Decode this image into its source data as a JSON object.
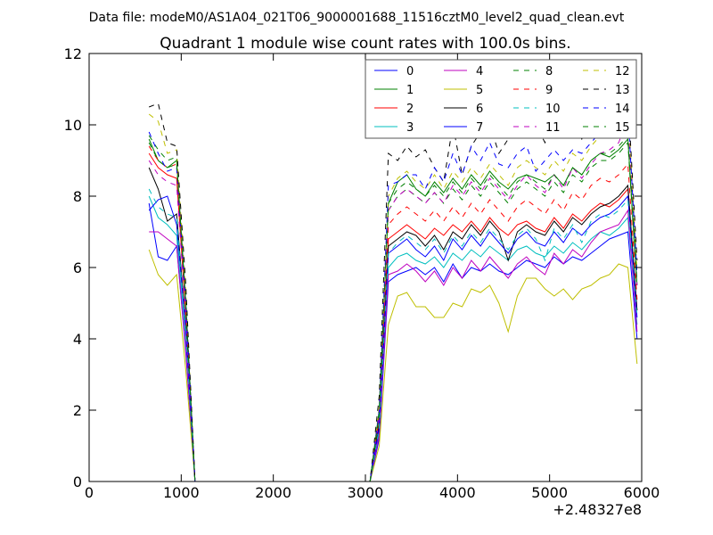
{
  "chart_data": {
    "type": "line",
    "suptitle": "Data file: modeM0/AS1A04_021T06_9000001688_11516cztM0_level2_quad_clean.evt",
    "title": "Quadrant 1 module wise count rates with 100.0s bins.",
    "xlabel": "",
    "ylabel": "",
    "x_offset_label": "+2.48327e8",
    "xlim": [
      0,
      6000
    ],
    "ylim": [
      0,
      12
    ],
    "xticks": [
      0,
      1000,
      2000,
      3000,
      4000,
      5000,
      6000
    ],
    "yticks": [
      0,
      2,
      4,
      6,
      8,
      10,
      12
    ],
    "grid": false,
    "legend_position": "top-right",
    "legend_columns": 4,
    "x": [
      650,
      750,
      850,
      950,
      1050,
      1150,
      1250,
      1350,
      1450,
      1550,
      1650,
      1750,
      1850,
      1950,
      2050,
      2150,
      2250,
      2350,
      2450,
      2550,
      2650,
      2750,
      2850,
      2950,
      3050,
      3150,
      3250,
      3350,
      3450,
      3550,
      3650,
      3750,
      3850,
      3950,
      4050,
      4150,
      4250,
      4350,
      4450,
      4550,
      4650,
      4750,
      4850,
      4950,
      5050,
      5150,
      5250,
      5350,
      5450,
      5550,
      5650,
      5750,
      5850,
      5950
    ],
    "series": [
      {
        "name": "0",
        "color": "#0000ff",
        "dash": false,
        "values": [
          7.8,
          6.3,
          6.2,
          6.6,
          3.6,
          0,
          0,
          0,
          0,
          0,
          0,
          0,
          0,
          0,
          0,
          0,
          0,
          0,
          0,
          0,
          0,
          0,
          0,
          0,
          0,
          1.2,
          5.6,
          5.8,
          5.9,
          6.0,
          5.8,
          6.0,
          5.6,
          6.1,
          5.7,
          6.0,
          5.9,
          6.1,
          5.9,
          5.8,
          6.0,
          6.2,
          6.1,
          6.0,
          6.3,
          6.1,
          6.3,
          6.2,
          6.4,
          6.6,
          6.8,
          6.9,
          7.0,
          4.0
        ]
      },
      {
        "name": "1",
        "color": "#008000",
        "dash": false,
        "values": [
          9.6,
          9.0,
          8.8,
          9.0,
          5.0,
          0,
          0,
          0,
          0,
          0,
          0,
          0,
          0,
          0,
          0,
          0,
          0,
          0,
          0,
          0,
          0,
          0,
          0,
          0,
          0,
          2.0,
          7.8,
          8.4,
          8.6,
          8.2,
          8.0,
          8.4,
          8.1,
          8.5,
          8.2,
          8.6,
          8.3,
          8.7,
          8.4,
          8.2,
          8.5,
          8.6,
          8.5,
          8.4,
          8.6,
          8.3,
          8.8,
          8.6,
          9.0,
          9.2,
          9.1,
          9.3,
          9.6,
          5.5
        ]
      },
      {
        "name": "2",
        "color": "#ff0000",
        "dash": false,
        "values": [
          9.2,
          8.8,
          8.6,
          8.5,
          4.7,
          0,
          0,
          0,
          0,
          0,
          0,
          0,
          0,
          0,
          0,
          0,
          0,
          0,
          0,
          0,
          0,
          0,
          0,
          0,
          0,
          1.8,
          6.8,
          7.0,
          7.2,
          7.0,
          6.8,
          7.1,
          6.9,
          7.2,
          7.0,
          7.3,
          7.0,
          7.4,
          7.1,
          6.9,
          7.2,
          7.3,
          7.1,
          7.0,
          7.4,
          7.1,
          7.5,
          7.3,
          7.6,
          7.8,
          7.7,
          7.9,
          8.2,
          4.8
        ]
      },
      {
        "name": "3",
        "color": "#00bfbf",
        "dash": false,
        "values": [
          8.0,
          7.4,
          7.2,
          6.9,
          3.8,
          0,
          0,
          0,
          0,
          0,
          0,
          0,
          0,
          0,
          0,
          0,
          0,
          0,
          0,
          0,
          0,
          0,
          0,
          0,
          0,
          1.4,
          6.0,
          6.3,
          6.4,
          6.2,
          6.1,
          6.3,
          6.0,
          6.4,
          6.2,
          6.5,
          6.3,
          6.6,
          6.4,
          6.2,
          6.5,
          6.6,
          6.4,
          6.3,
          6.6,
          6.4,
          6.7,
          6.5,
          6.8,
          7.0,
          6.9,
          7.1,
          7.4,
          4.4
        ]
      },
      {
        "name": "4",
        "color": "#bf00bf",
        "dash": false,
        "values": [
          7.0,
          7.0,
          6.8,
          6.6,
          3.7,
          0,
          0,
          0,
          0,
          0,
          0,
          0,
          0,
          0,
          0,
          0,
          0,
          0,
          0,
          0,
          0,
          0,
          0,
          0,
          0,
          1.3,
          5.8,
          5.9,
          6.1,
          5.9,
          5.6,
          5.9,
          5.5,
          6.0,
          5.7,
          6.2,
          5.9,
          6.3,
          6.0,
          5.7,
          6.1,
          6.3,
          6.0,
          5.8,
          6.4,
          6.1,
          6.5,
          6.3,
          6.7,
          7.0,
          7.1,
          7.2,
          7.6,
          4.2
        ]
      },
      {
        "name": "5",
        "color": "#bfbf00",
        "dash": false,
        "values": [
          6.5,
          5.8,
          5.5,
          5.8,
          3.1,
          0,
          0,
          0,
          0,
          0,
          0,
          0,
          0,
          0,
          0,
          0,
          0,
          0,
          0,
          0,
          0,
          0,
          0,
          0,
          0,
          1.0,
          4.4,
          5.2,
          5.3,
          4.9,
          4.9,
          4.6,
          4.6,
          5.0,
          4.9,
          5.4,
          5.3,
          5.5,
          5.0,
          4.2,
          5.2,
          5.7,
          5.7,
          5.4,
          5.2,
          5.4,
          5.1,
          5.4,
          5.5,
          5.7,
          5.8,
          6.1,
          6.0,
          3.3
        ]
      },
      {
        "name": "6",
        "color": "#000000",
        "dash": false,
        "values": [
          8.8,
          8.2,
          7.3,
          7.5,
          4.3,
          0,
          0,
          0,
          0,
          0,
          0,
          0,
          0,
          0,
          0,
          0,
          0,
          0,
          0,
          0,
          0,
          0,
          0,
          0,
          0,
          1.6,
          6.6,
          6.8,
          7.0,
          6.9,
          6.6,
          6.9,
          6.5,
          7.0,
          6.8,
          7.2,
          6.9,
          7.3,
          7.0,
          6.2,
          7.0,
          7.2,
          7.0,
          6.9,
          7.3,
          7.0,
          7.4,
          7.2,
          7.5,
          7.7,
          7.8,
          8.0,
          8.3,
          4.8
        ]
      },
      {
        "name": "7",
        "color": "#0000ff",
        "dash": false,
        "values": [
          7.6,
          7.9,
          8.0,
          7.2,
          4.2,
          0,
          0,
          0,
          0,
          0,
          0,
          0,
          0,
          0,
          0,
          0,
          0,
          0,
          0,
          0,
          0,
          0,
          0,
          0,
          0,
          1.5,
          6.4,
          6.6,
          6.8,
          6.5,
          6.3,
          6.6,
          6.2,
          6.8,
          6.5,
          6.9,
          6.6,
          7.0,
          6.7,
          6.4,
          6.8,
          7.0,
          6.7,
          6.6,
          7.0,
          6.7,
          7.1,
          6.9,
          7.2,
          7.4,
          7.5,
          7.7,
          8.0,
          4.6
        ]
      },
      {
        "name": "8",
        "color": "#008000",
        "dash": true,
        "values": [
          9.7,
          9.3,
          9.0,
          9.1,
          5.1,
          0,
          0,
          0,
          0,
          0,
          0,
          0,
          0,
          0,
          0,
          0,
          0,
          0,
          0,
          0,
          0,
          0,
          0,
          0,
          0,
          2.0,
          7.6,
          8.0,
          8.2,
          8.0,
          7.8,
          8.1,
          7.8,
          8.2,
          7.9,
          8.3,
          8.0,
          8.4,
          8.1,
          7.8,
          8.2,
          8.4,
          8.2,
          8.0,
          8.4,
          8.1,
          8.6,
          8.4,
          8.8,
          9.0,
          9.0,
          9.2,
          9.5,
          5.4
        ]
      },
      {
        "name": "9",
        "color": "#ff0000",
        "dash": true,
        "values": [
          9.4,
          9.0,
          8.8,
          8.9,
          4.9,
          0,
          0,
          0,
          0,
          0,
          0,
          0,
          0,
          0,
          0,
          0,
          0,
          0,
          0,
          0,
          0,
          0,
          0,
          0,
          0,
          1.9,
          7.2,
          7.5,
          7.7,
          7.5,
          7.3,
          7.6,
          7.3,
          7.7,
          7.4,
          7.8,
          7.5,
          7.9,
          7.6,
          7.3,
          7.7,
          7.9,
          7.7,
          7.5,
          7.9,
          7.6,
          8.1,
          7.9,
          8.3,
          8.5,
          8.4,
          8.6,
          8.9,
          5.1
        ]
      },
      {
        "name": "10",
        "color": "#00bfbf",
        "dash": true,
        "values": [
          8.2,
          7.7,
          7.5,
          7.4,
          4.1,
          0,
          0,
          0,
          0,
          0,
          0,
          0,
          0,
          0,
          0,
          0,
          0,
          0,
          0,
          0,
          0,
          0,
          0,
          0,
          0,
          1.5,
          6.4,
          6.7,
          6.9,
          6.7,
          6.5,
          6.8,
          6.4,
          6.9,
          6.6,
          7.0,
          6.7,
          7.1,
          6.8,
          6.5,
          6.9,
          7.1,
          6.8,
          6.2,
          7.1,
          6.8,
          7.2,
          6.7,
          7.3,
          7.5,
          7.4,
          7.6,
          7.9,
          4.6
        ]
      },
      {
        "name": "11",
        "color": "#bf00bf",
        "dash": true,
        "values": [
          9.0,
          8.6,
          8.4,
          8.3,
          4.6,
          0,
          0,
          0,
          0,
          0,
          0,
          0,
          0,
          0,
          0,
          0,
          0,
          0,
          0,
          0,
          0,
          0,
          0,
          0,
          0,
          1.8,
          7.6,
          8.0,
          8.2,
          8.0,
          7.8,
          8.1,
          7.8,
          8.3,
          8.0,
          8.4,
          8.1,
          8.5,
          8.2,
          7.9,
          8.3,
          8.6,
          8.3,
          8.1,
          8.6,
          8.2,
          8.8,
          8.5,
          8.9,
          9.2,
          9.3,
          9.5,
          10.2,
          5.5
        ]
      },
      {
        "name": "12",
        "color": "#bfbf00",
        "dash": true,
        "values": [
          10.3,
          10.1,
          9.2,
          9.3,
          5.3,
          0,
          0,
          0,
          0,
          0,
          0,
          0,
          0,
          0,
          0,
          0,
          0,
          0,
          0,
          0,
          0,
          0,
          0,
          0,
          0,
          2.1,
          8.0,
          8.5,
          8.7,
          8.4,
          8.2,
          8.6,
          8.2,
          8.7,
          8.4,
          8.8,
          8.5,
          8.9,
          8.6,
          8.3,
          8.8,
          9.0,
          8.8,
          8.6,
          9.0,
          8.7,
          9.2,
          9.0,
          9.4,
          9.7,
          9.8,
          10.0,
          10.6,
          5.9
        ]
      },
      {
        "name": "13",
        "color": "#000000",
        "dash": true,
        "values": [
          10.5,
          10.6,
          9.5,
          9.4,
          5.5,
          0,
          0,
          0,
          0,
          0,
          0,
          0,
          0,
          0,
          0,
          0,
          0,
          0,
          0,
          0,
          0,
          0,
          0,
          0,
          0,
          2.4,
          9.2,
          9.0,
          9.4,
          9.1,
          9.3,
          8.8,
          8.4,
          10.0,
          8.6,
          9.4,
          9.8,
          10.0,
          9.2,
          9.6,
          10.2,
          9.8,
          10.0,
          9.5,
          10.2,
          9.8,
          10.0,
          9.6,
          10.2,
          10.4,
          10.6,
          11.3,
          10.8,
          6.2
        ]
      },
      {
        "name": "14",
        "color": "#0000ff",
        "dash": true,
        "values": [
          9.8,
          9.2,
          8.7,
          8.8,
          5.0,
          0,
          0,
          0,
          0,
          0,
          0,
          0,
          0,
          0,
          0,
          0,
          0,
          0,
          0,
          0,
          0,
          0,
          0,
          0,
          0,
          2.0,
          8.3,
          8.4,
          8.6,
          8.6,
          8.2,
          8.8,
          8.4,
          9.2,
          8.6,
          9.4,
          9.0,
          9.5,
          8.9,
          8.8,
          9.2,
          9.4,
          8.7,
          9.0,
          9.3,
          9.0,
          9.3,
          9.2,
          9.5,
          9.8,
          9.8,
          10.0,
          10.4,
          5.8
        ]
      },
      {
        "name": "15",
        "color": "#008000",
        "dash": true,
        "values": [
          9.5,
          9.0,
          8.8,
          8.9,
          4.9,
          0,
          0,
          0,
          0,
          0,
          0,
          0,
          0,
          0,
          0,
          0,
          0,
          0,
          0,
          0,
          0,
          0,
          0,
          0,
          0,
          1.9,
          7.8,
          8.2,
          8.4,
          8.2,
          8.0,
          8.3,
          8.0,
          8.4,
          8.1,
          8.5,
          8.2,
          8.6,
          8.3,
          8.0,
          8.4,
          8.6,
          8.4,
          8.2,
          8.6,
          8.3,
          8.8,
          8.6,
          9.0,
          9.2,
          9.2,
          9.4,
          9.7,
          5.6
        ]
      }
    ]
  }
}
